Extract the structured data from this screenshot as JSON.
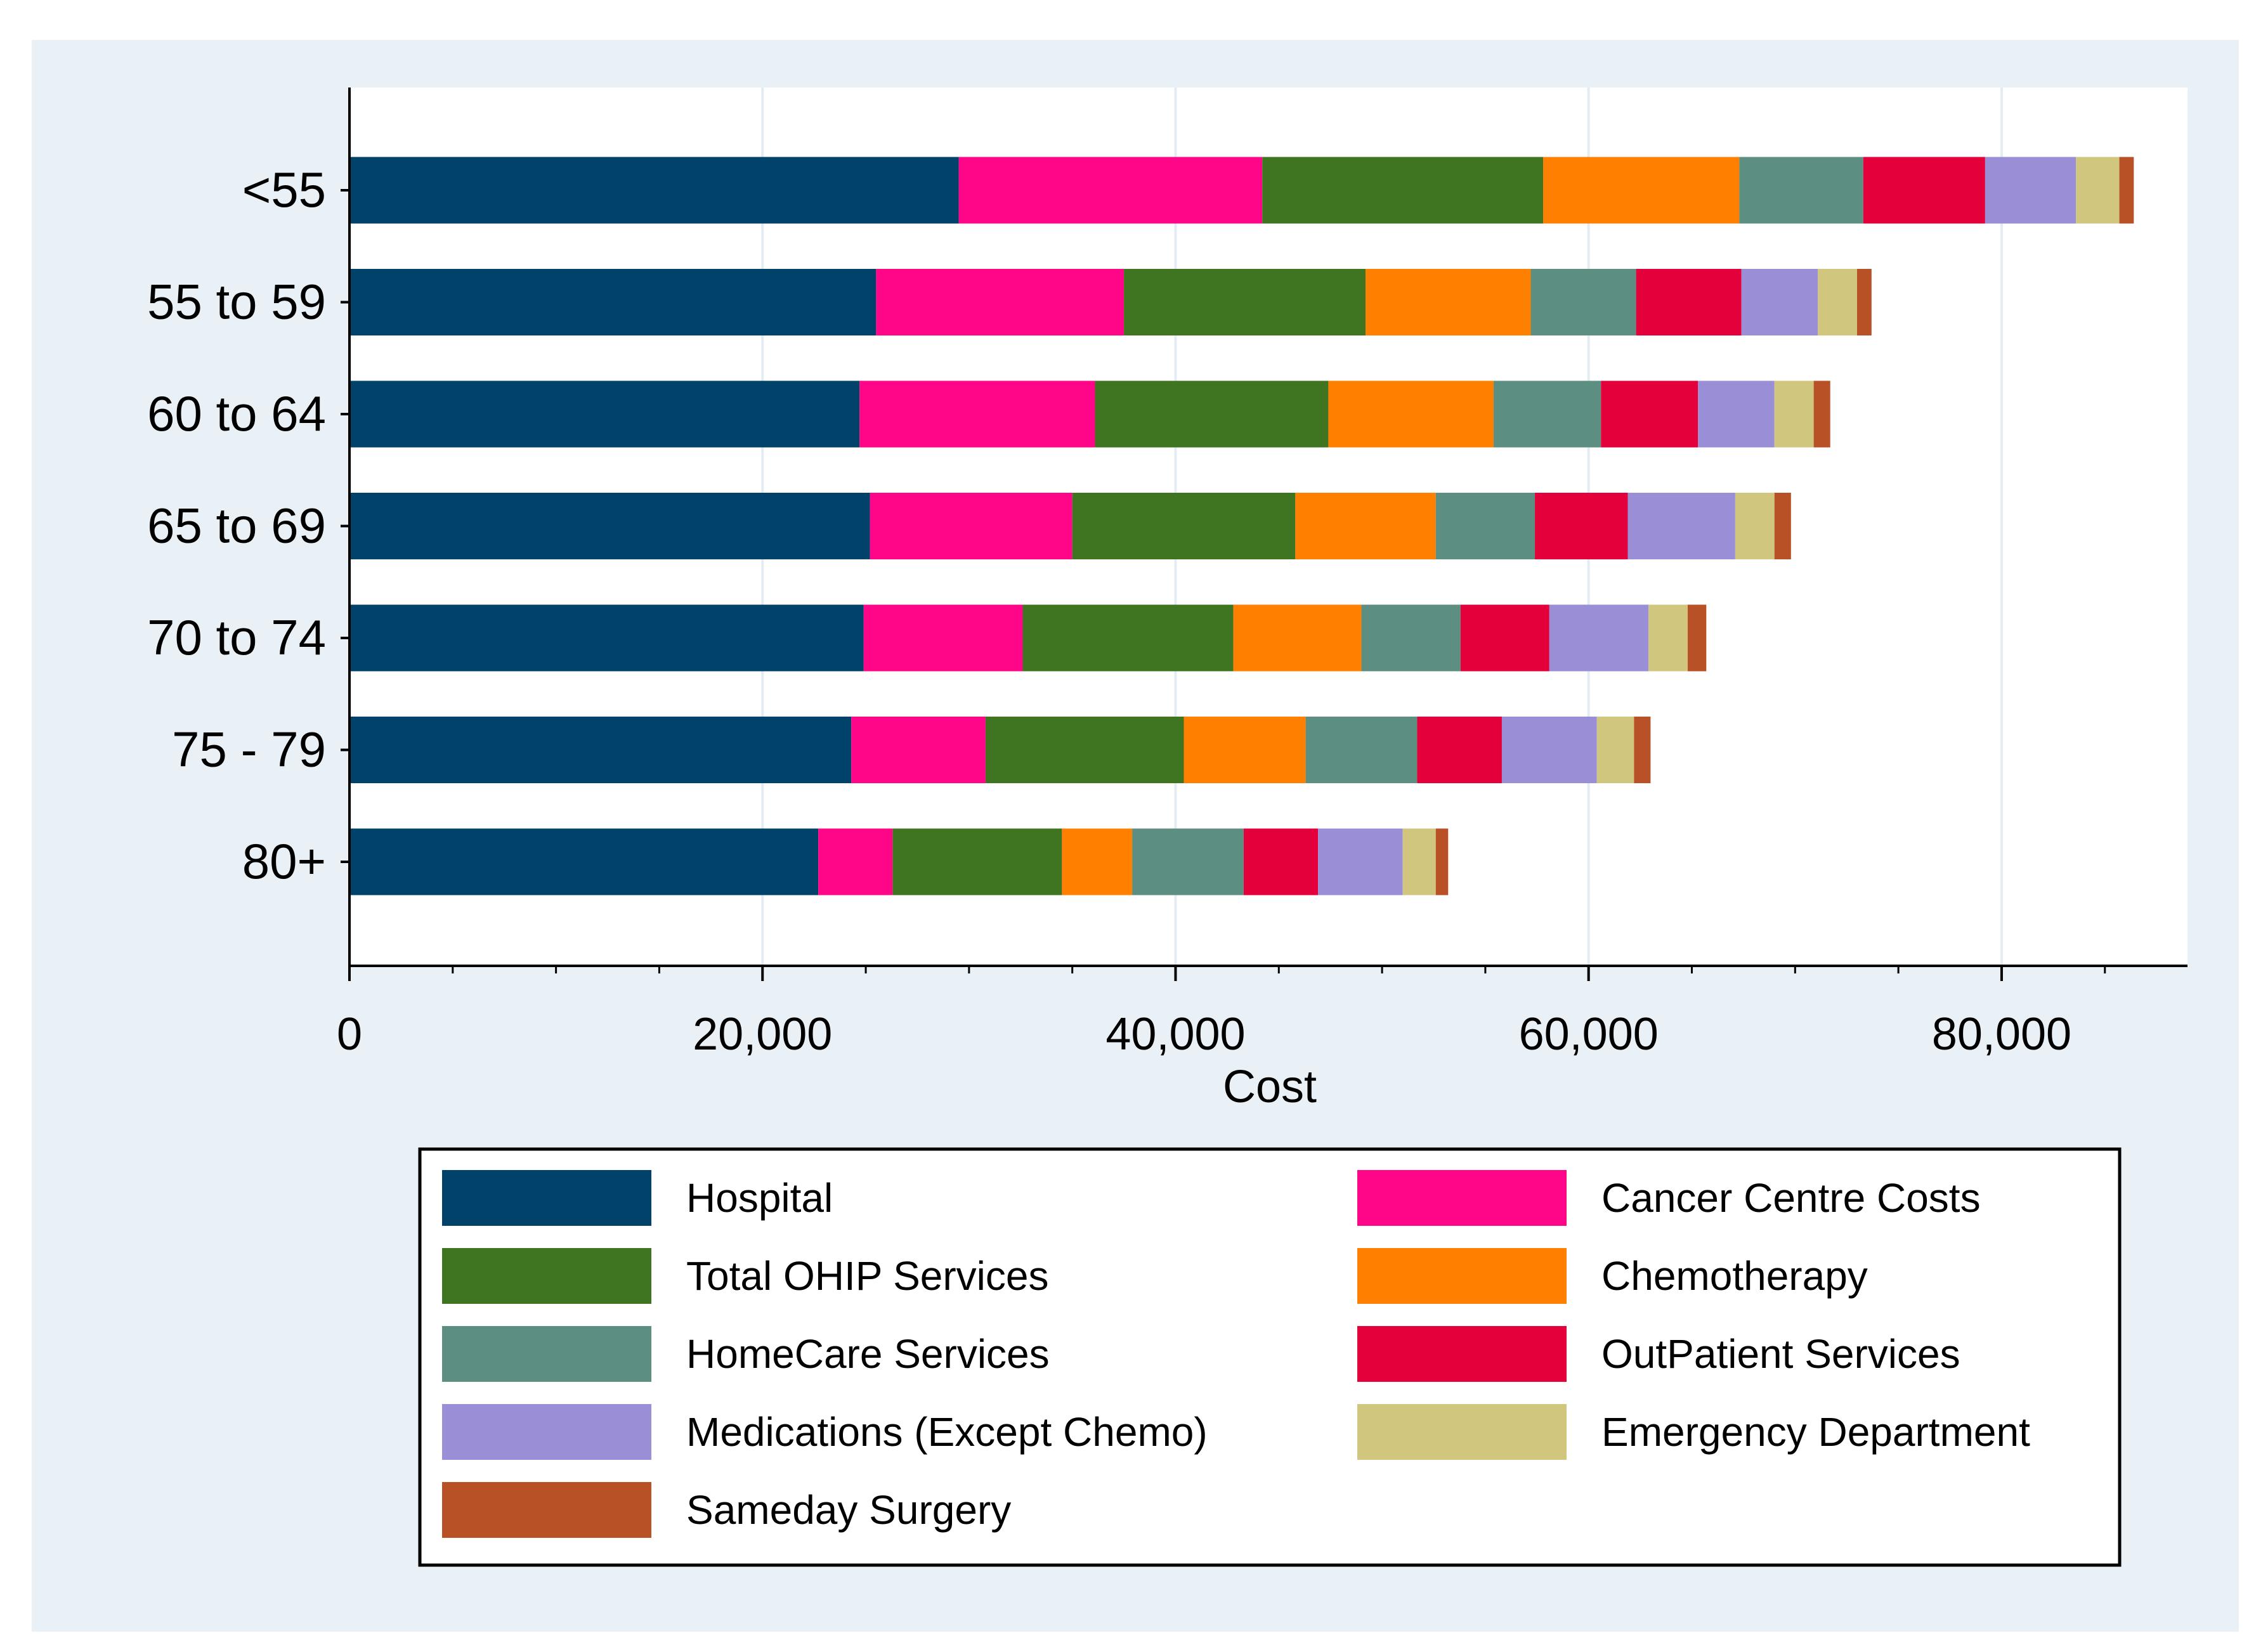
{
  "chart_data": {
    "type": "bar",
    "orientation": "horizontal",
    "stacked": true,
    "title": "",
    "xlabel": "Cost",
    "ylabel": "",
    "xlim": [
      0,
      89000
    ],
    "x_ticks": [
      0,
      20000,
      40000,
      60000,
      80000
    ],
    "x_tick_labels": [
      "0",
      "20,000",
      "40,000",
      "60,000",
      "80,000"
    ],
    "grid": true,
    "legend_position": "bottom",
    "categories": [
      "<55",
      "55 to 59",
      "60 to 64",
      "65 to 69",
      "70 to 74",
      "75 - 79",
      "80+"
    ],
    "series": [
      {
        "name": "Hospital",
        "color": "#01426a",
        "values": [
          29500,
          25500,
          24700,
          25200,
          24900,
          24300,
          22700
        ]
      },
      {
        "name": "Cancer Centre Costs",
        "color": "#ff0689",
        "values": [
          14700,
          12000,
          11400,
          9800,
          7700,
          6500,
          3600
        ]
      },
      {
        "name": "Total OHIP Services",
        "color": "#3f7520",
        "values": [
          13600,
          11700,
          11300,
          10800,
          10200,
          9600,
          8200
        ]
      },
      {
        "name": "Chemotherapy",
        "color": "#ff7f00",
        "values": [
          9500,
          8000,
          8000,
          6800,
          6200,
          5900,
          3400
        ]
      },
      {
        "name": "HomeCare Services",
        "color": "#5c8e82",
        "values": [
          6000,
          5100,
          5200,
          4800,
          4800,
          5400,
          5400
        ]
      },
      {
        "name": "OutPatient Services",
        "color": "#e4003a",
        "values": [
          5900,
          5100,
          4700,
          4500,
          4300,
          4100,
          3600
        ]
      },
      {
        "name": "Medications (Except Chemo)",
        "color": "#9a8fd6",
        "values": [
          4400,
          3700,
          3700,
          5200,
          4800,
          4600,
          4100
        ]
      },
      {
        "name": "Emergency Department",
        "color": "#d1c67e",
        "values": [
          2100,
          1900,
          1900,
          1900,
          1900,
          1800,
          1600
        ]
      },
      {
        "name": "Sameday Surgery",
        "color": "#b85126",
        "values": [
          700,
          700,
          800,
          800,
          900,
          800,
          600
        ]
      }
    ]
  }
}
